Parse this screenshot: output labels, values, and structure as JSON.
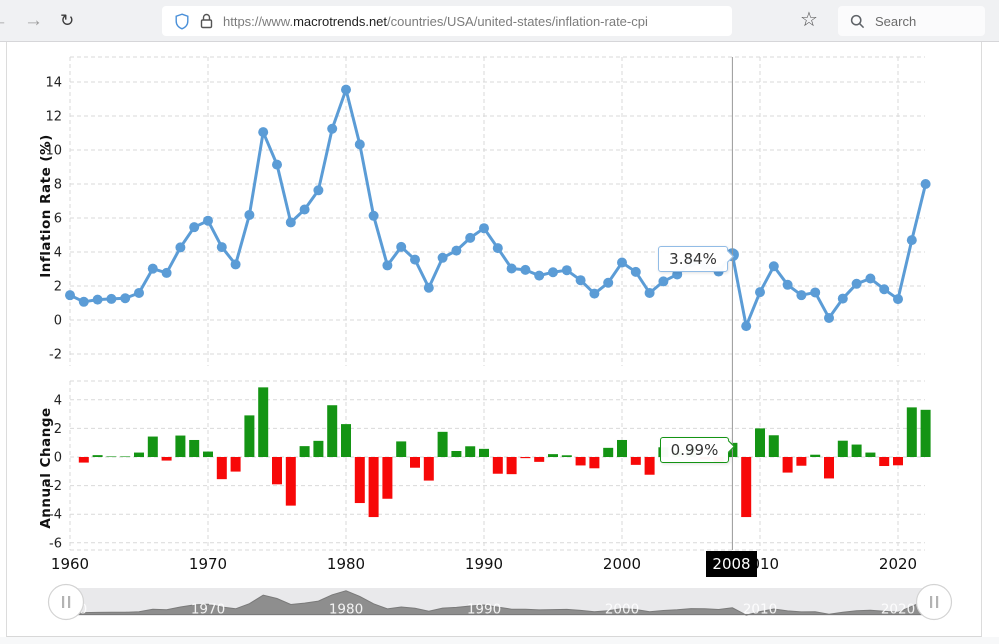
{
  "browser": {
    "back_icon": "←",
    "forward_icon": "→",
    "reload_icon": "↻",
    "bookmark_icon": "☆",
    "url": {
      "scheme": "https://www.",
      "domain": "macrotrends.net",
      "path": "/countries/USA/united-states/inflation-rate-cpi"
    },
    "search_placeholder": "Search"
  },
  "colors": {
    "line": "#5b9cd6",
    "positive": "#149414",
    "negative": "#f70808",
    "grid": "#d9d9d9",
    "crosshair": "#999999",
    "tick_text": "#222222",
    "year_text": "#111111",
    "nav_fill": "#8e8e8e",
    "nav_stroke": "#7a7a7a",
    "nav_track": "#e9e9eb",
    "tooltip_rate_border": "#92bce6",
    "tooltip_change_border": "#149414"
  },
  "crosshair": {
    "year_label": "2008",
    "rate_label": "3.84%",
    "change_label": "0.99%"
  },
  "chart_data": [
    {
      "id": "inflation_rate",
      "type": "line",
      "ylabel": "Inflation Rate (%)",
      "year_start": 1960,
      "year_end": 2022,
      "values": [
        1.46,
        1.07,
        1.2,
        1.24,
        1.28,
        1.59,
        3.02,
        2.77,
        4.27,
        5.46,
        5.84,
        4.29,
        3.27,
        6.18,
        11.05,
        9.14,
        5.74,
        6.5,
        7.63,
        11.25,
        13.55,
        10.33,
        6.13,
        3.21,
        4.3,
        3.55,
        1.9,
        3.66,
        4.08,
        4.83,
        5.4,
        4.23,
        3.03,
        2.95,
        2.61,
        2.81,
        2.93,
        2.34,
        1.55,
        2.19,
        3.38,
        2.83,
        1.59,
        2.27,
        2.68,
        3.39,
        3.23,
        2.85,
        3.84,
        -0.36,
        1.64,
        3.16,
        2.07,
        1.46,
        1.62,
        0.12,
        1.26,
        2.13,
        2.44,
        1.81,
        1.23,
        4.7,
        8.0
      ],
      "yticks": [
        -2,
        0,
        2,
        4,
        6,
        8,
        10,
        12,
        14
      ],
      "xticks": [
        1960,
        1970,
        1980,
        1990,
        2000,
        2010,
        2020
      ],
      "ylim": [
        -2.7,
        15.5
      ],
      "grid": true,
      "highlight": {
        "year": 2008,
        "value": 3.84
      }
    },
    {
      "id": "annual_change",
      "type": "bar",
      "ylabel": "Annual Change",
      "year_start": 1961,
      "year_end": 2022,
      "values": [
        -0.39,
        0.13,
        0.04,
        0.04,
        0.31,
        1.43,
        -0.25,
        1.5,
        1.19,
        0.38,
        -1.55,
        -1.02,
        2.91,
        4.87,
        -1.91,
        -3.4,
        0.76,
        1.13,
        3.62,
        2.3,
        -3.22,
        -4.2,
        -2.92,
        1.09,
        -0.75,
        -1.65,
        1.76,
        0.42,
        0.75,
        0.57,
        -1.17,
        -1.2,
        -0.08,
        -0.34,
        0.2,
        0.12,
        -0.59,
        -0.79,
        0.64,
        1.19,
        -0.55,
        -1.24,
        0.68,
        0.41,
        0.71,
        -0.16,
        -0.38,
        0.99,
        -4.2,
        2.0,
        1.52,
        -1.09,
        -0.61,
        0.16,
        -1.5,
        1.14,
        0.87,
        0.31,
        -0.63,
        -0.58,
        3.47,
        3.3
      ],
      "yticks": [
        -6,
        -4,
        -2,
        0,
        2,
        4
      ],
      "ylim": [
        -6.5,
        5.3
      ],
      "grid": true,
      "highlight": {
        "year": 2008,
        "value": 0.99
      }
    },
    {
      "id": "navigator",
      "type": "area",
      "source": "inflation_rate",
      "labels": [
        1960,
        1970,
        1980,
        1990,
        2000,
        2010,
        2020
      ]
    }
  ]
}
